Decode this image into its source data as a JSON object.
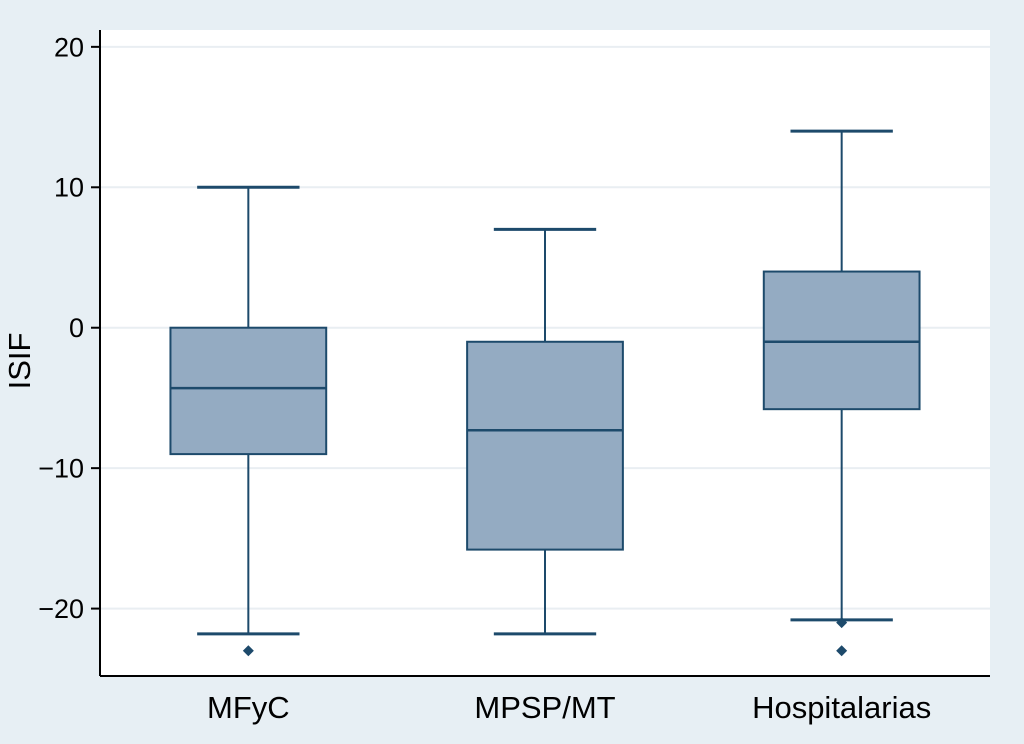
{
  "chart_data": {
    "type": "box",
    "title": "",
    "xlabel": "",
    "ylabel": "ISIF",
    "ylim": [
      -24.8,
      21.2
    ],
    "grid": true,
    "yticks": [
      {
        "value": 20,
        "label": "20"
      },
      {
        "value": 10,
        "label": "10"
      },
      {
        "value": 0,
        "label": "0"
      },
      {
        "value": -10,
        "label": "−10"
      },
      {
        "value": -20,
        "label": "−20"
      }
    ],
    "categories": [
      "MFyC",
      "MPSP/MT",
      "Hospitalarias"
    ],
    "series": [
      {
        "name": "MFyC",
        "whisker_low": -21.8,
        "q1": -9,
        "median": -4.3,
        "q3": 0,
        "whisker_high": 10,
        "outliers": [
          -23
        ]
      },
      {
        "name": "MPSP/MT",
        "whisker_low": -21.8,
        "q1": -15.8,
        "median": -7.3,
        "q3": -1,
        "whisker_high": 7,
        "outliers": []
      },
      {
        "name": "Hospitalarias",
        "whisker_low": -20.8,
        "q1": -5.8,
        "median": -1,
        "q3": 4,
        "whisker_high": 14,
        "outliers": [
          -21,
          -23
        ]
      }
    ],
    "colors": {
      "background": "#e7eff4",
      "plot_bg": "#ffffff",
      "box_fill": "#94abc2",
      "box_stroke": "#1d4a6b",
      "median": "#1d4a6b",
      "whisker": "#1d4a6b",
      "outlier": "#1d4a6b",
      "grid": "#e9eef2",
      "axis": "#000000"
    },
    "legend": "none"
  }
}
